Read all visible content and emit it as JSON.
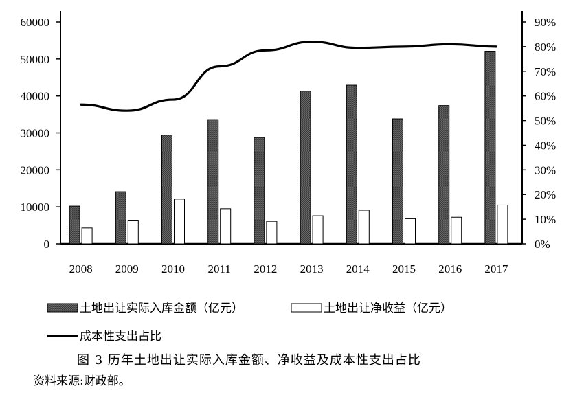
{
  "chart_data": {
    "type": "bar",
    "categories": [
      "2008",
      "2009",
      "2010",
      "2011",
      "2012",
      "2013",
      "2014",
      "2015",
      "2016",
      "2017"
    ],
    "series": [
      {
        "name": "土地出让实际入库金额（亿元）",
        "kind": "bar",
        "axis": "left",
        "pattern": "hatched-dark",
        "values": [
          10200,
          14100,
          29400,
          33600,
          28800,
          41300,
          42900,
          33800,
          37400,
          52100
        ]
      },
      {
        "name": "土地出让净收益（亿元）",
        "kind": "bar",
        "axis": "left",
        "pattern": "white",
        "values": [
          4300,
          6400,
          12100,
          9500,
          6100,
          7600,
          9100,
          6800,
          7200,
          10500
        ]
      },
      {
        "name": "成本性支出占比",
        "kind": "line",
        "axis": "right",
        "values": [
          56.5,
          54.0,
          58.5,
          72.0,
          78.5,
          82.0,
          79.5,
          80.0,
          81.0,
          80.0
        ]
      }
    ],
    "y_left": {
      "ylim": [
        0,
        60000
      ],
      "ticks": [
        "0",
        "10000",
        "20000",
        "30000",
        "40000",
        "50000",
        "60000"
      ]
    },
    "y_right": {
      "ylim": [
        0,
        90
      ],
      "ticks": [
        "0%",
        "10%",
        "20%",
        "30%",
        "40%",
        "50%",
        "60%",
        "70%",
        "80%",
        "90%"
      ]
    },
    "legend_position": "bottom",
    "grid": false,
    "colors": {
      "bar_dark_fill": "#5e5e5e",
      "bar_light_fill": "#ffffff",
      "line": "#000000"
    }
  },
  "caption": "图 3  历年土地出让实际入库金额、净收益及成本性支出占比",
  "source": "资料来源:财政部。"
}
